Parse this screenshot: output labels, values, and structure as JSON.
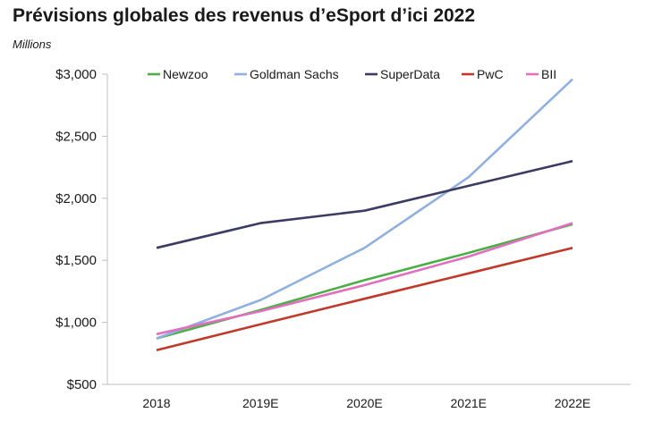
{
  "chart_data": {
    "type": "line",
    "title": "Prévisions globales des revenus d’eSport d’ici 2022",
    "ylabel": "Millions",
    "xlabel": "",
    "categories": [
      "2018",
      "2019E",
      "2020E",
      "2021E",
      "2022E"
    ],
    "ylim": [
      500,
      3000
    ],
    "yticks": [
      500,
      1000,
      1500,
      2000,
      2500,
      3000
    ],
    "ytick_labels": [
      "$500",
      "$1,000",
      "$1,500",
      "$2,000",
      "$2,500",
      "$3,000"
    ],
    "grid": false,
    "legend_position": "top",
    "series": [
      {
        "name": "Newzoo",
        "color": "#4caf45",
        "values": [
          870,
          1100,
          1340,
          1560,
          1790
        ]
      },
      {
        "name": "Goldman Sachs",
        "color": "#8fb0e0",
        "values": [
          870,
          1180,
          1600,
          2170,
          2960
        ]
      },
      {
        "name": "SuperData",
        "color": "#3b3b63",
        "values": [
          1600,
          1800,
          1900,
          2100,
          2300
        ]
      },
      {
        "name": "PwC",
        "color": "#c0392b",
        "values": [
          775,
          985,
          1190,
          1395,
          1600
        ]
      },
      {
        "name": "BII",
        "color": "#e06fbf",
        "values": [
          905,
          1090,
          1300,
          1530,
          1800
        ]
      }
    ]
  }
}
